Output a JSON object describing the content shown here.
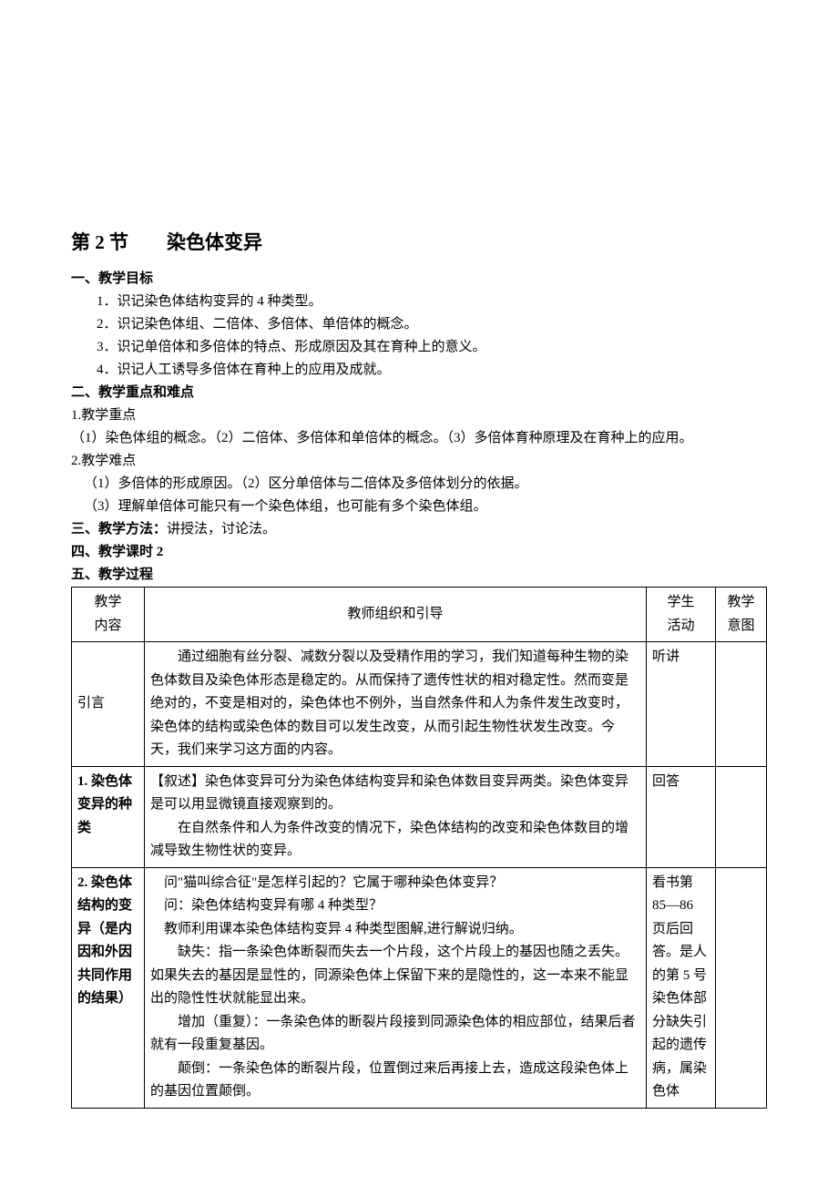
{
  "chapter": {
    "title": "第 2 节　　染色体变异"
  },
  "section1": {
    "heading": "一、教学目标",
    "items": [
      "1．识记染色体结构变异的 4 种类型。",
      "2．识记染色体组、二倍体、多倍体、单倍体的概念。",
      "3．识记单倍体和多倍体的特点、形成原因及其在育种上的意义。",
      "4．识记人工诱导多倍体在育种上的应用及成就。"
    ]
  },
  "section2": {
    "heading": "二、教学重点和难点",
    "sub1_label": "1.教学重点",
    "sub1_text": "（1）染色体组的概念。（2）二倍体、多倍体和单倍体的概念。（3）多倍体育种原理及在育种上的应用。",
    "sub2_label": "2.教学难点",
    "sub2_lines": [
      "（1）多倍体的形成原因。（2）区分单倍体与二倍体及多倍体划分的依据。",
      "（3）理解单倍体可能只有一个染色体组，也可能有多个染色体组。"
    ]
  },
  "section3": {
    "label": "三、教学方法：",
    "value": "讲授法，讨论法。"
  },
  "section4": {
    "label": "四、教学课时 2"
  },
  "section5": {
    "label": "五、教学过程"
  },
  "table": {
    "headers": {
      "topic_l1": "教学",
      "topic_l2": "内容",
      "teacher": "教师组织和引导",
      "student_l1": "学生",
      "student_l2": "活动",
      "intent_l1": "教学",
      "intent_l2": "意图"
    },
    "rows": [
      {
        "topic": "引言",
        "topic_bold": false,
        "teacher_paras": [
          "　　通过细胞有丝分裂、减数分裂以及受精作用的学习，我们知道每种生物的染色体数目及染色体形态是稳定的。从而保持了遗传性状的相对稳定性。然而变是绝对的，不变是相对的，染色体也不例外，当自然条件和人为条件发生改变时，染色体的结构或染色体的数目可以发生改变，从而引起生物性状发生改变。今天，我们来学习这方面的内容。"
        ],
        "student": "听讲",
        "intent": ""
      },
      {
        "topic": "1. 染色体变异的种类",
        "topic_bold": true,
        "teacher_paras": [
          "【叙述】染色体变异可分为染色体结构变异和染色体数目变异两类。染色体变异是可以用显微镜直接观察到的。",
          "　　在自然条件和人为条件改变的情况下，染色体结构的改变和染色体数目的增减导致生物性状的变异。"
        ],
        "student": "回答",
        "intent": ""
      },
      {
        "topic": "2. 染色体结构的变异（是内因和外因共同作用的结果）",
        "topic_bold": true,
        "teacher_paras": [
          "　问\"猫叫综合征\"是怎样引起的？它属于哪种染色体变异？",
          "　问：染色体结构变异有哪 4 种类型？",
          "　教师利用课本染色体结构变异 4 种类型图解,进行解说归纳。",
          "　　缺失：指一条染色体断裂而失去一个片段，这个片段上的基因也随之丢失。如果失去的基因是显性的，同源染色体上保留下来的是隐性的，这一本来不能显出的隐性性状就能显出来。",
          "　　增加（重复）：一条染色体的断裂片段接到同源染色体的相应部位，结果后者就有一段重复基因。",
          "　　颠倒：一条染色体的断裂片段，位置倒过来后再接上去，造成这段染色体上的基因位置颠倒。"
        ],
        "student": "看书第 85—86 页后回答。是人的第 5 号染色体部分缺失引起的遗传病，属染色体",
        "intent": ""
      }
    ]
  }
}
